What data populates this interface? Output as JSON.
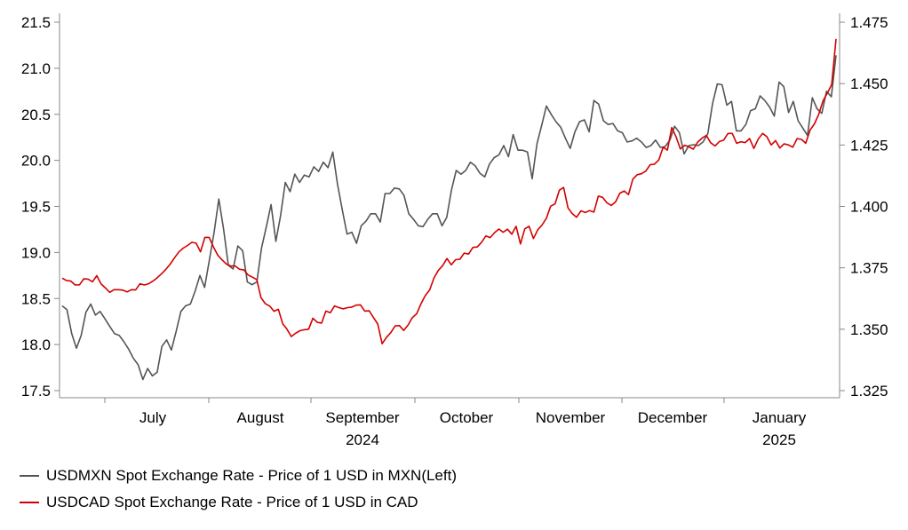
{
  "chart_data": {
    "type": "line",
    "left_axis": {
      "ylim": [
        17.5,
        21.5
      ],
      "ticks": [
        "17.5",
        "18.0",
        "18.5",
        "19.0",
        "19.5",
        "20.0",
        "20.5",
        "21.0",
        "21.5"
      ],
      "tick_values": [
        17.5,
        18.0,
        18.5,
        19.0,
        19.5,
        20.0,
        20.5,
        21.0,
        21.5
      ]
    },
    "right_axis": {
      "ylim": [
        1.325,
        1.475
      ],
      "ticks": [
        "1.325",
        "1.350",
        "1.375",
        "1.400",
        "1.425",
        "1.450",
        "1.475"
      ],
      "tick_values": [
        1.325,
        1.35,
        1.375,
        1.4,
        1.425,
        1.45,
        1.475
      ]
    },
    "x_labels": [
      {
        "label": "July",
        "year": ""
      },
      {
        "label": "August",
        "year": ""
      },
      {
        "label": "September",
        "year": "2024"
      },
      {
        "label": "October",
        "year": ""
      },
      {
        "label": "November",
        "year": ""
      },
      {
        "label": "December",
        "year": ""
      },
      {
        "label": "January",
        "year": "2025"
      }
    ],
    "series": [
      {
        "name": "USDMXN Spot Exchange Rate - Price of 1 USD in MXN(Left)",
        "axis": "left",
        "color": "#555555",
        "values": [
          18.42,
          18.38,
          18.12,
          17.96,
          18.1,
          18.35,
          18.44,
          18.32,
          18.36,
          18.28,
          18.2,
          18.12,
          18.1,
          18.03,
          17.95,
          17.85,
          17.78,
          17.62,
          17.74,
          17.66,
          17.7,
          17.98,
          18.05,
          17.94,
          18.14,
          18.36,
          18.42,
          18.44,
          18.58,
          18.75,
          18.62,
          18.92,
          19.22,
          19.58,
          19.25,
          18.86,
          18.82,
          19.07,
          19.02,
          18.68,
          18.65,
          18.68,
          19.05,
          19.28,
          19.52,
          19.12,
          19.4,
          19.76,
          19.66,
          19.85,
          19.76,
          19.84,
          19.82,
          19.93,
          19.88,
          19.98,
          19.92,
          20.09,
          19.74,
          19.46,
          19.2,
          19.22,
          19.1,
          19.29,
          19.34,
          19.42,
          19.42,
          19.33,
          19.64,
          19.64,
          19.7,
          19.69,
          19.62,
          19.42,
          19.36,
          19.29,
          19.28,
          19.36,
          19.42,
          19.42,
          19.29,
          19.38,
          19.68,
          19.89,
          19.85,
          19.89,
          19.98,
          19.94,
          19.86,
          19.82,
          19.96,
          20.03,
          20.06,
          20.16,
          20.04,
          20.28,
          20.11,
          20.11,
          20.09,
          19.8,
          20.18,
          20.38,
          20.59,
          20.5,
          20.42,
          20.36,
          20.24,
          20.13,
          20.31,
          20.42,
          20.44,
          20.31,
          20.65,
          20.61,
          20.43,
          20.39,
          20.4,
          20.32,
          20.3,
          20.2,
          20.21,
          20.24,
          20.2,
          20.14,
          20.16,
          20.22,
          20.14,
          20.15,
          20.22,
          20.37,
          20.3,
          20.07,
          20.16,
          20.17,
          20.16,
          20.2,
          20.29,
          20.62,
          20.83,
          20.82,
          20.6,
          20.64,
          20.32,
          20.32,
          20.39,
          20.54,
          20.56,
          20.7,
          20.65,
          20.58,
          20.48,
          20.85,
          20.8,
          20.52,
          20.64,
          20.43,
          20.35,
          20.27,
          20.68,
          20.56,
          20.51,
          20.75,
          20.69,
          21.14
        ]
      },
      {
        "name": "USDCAD Spot Exchange Rate - Price of 1 USD in CAD",
        "axis": "right",
        "color": "#d40000",
        "values": [
          1.3708,
          1.3698,
          1.3696,
          1.368,
          1.3681,
          1.3705,
          1.3704,
          1.3693,
          1.3718,
          1.3684,
          1.3668,
          1.365,
          1.3661,
          1.3661,
          1.3659,
          1.3652,
          1.3661,
          1.366,
          1.3685,
          1.368,
          1.3685,
          1.3696,
          1.371,
          1.3726,
          1.3744,
          1.3765,
          1.3791,
          1.3815,
          1.383,
          1.3841,
          1.3854,
          1.385,
          1.3815,
          1.3874,
          1.3874,
          1.3835,
          1.3801,
          1.3782,
          1.3765,
          1.3757,
          1.3758,
          1.3744,
          1.3742,
          1.3721,
          1.3712,
          1.3702,
          1.3628,
          1.3604,
          1.3594,
          1.3573,
          1.3581,
          1.3522,
          1.35,
          1.347,
          1.3484,
          1.3494,
          1.3498,
          1.35,
          1.3545,
          1.3528,
          1.3525,
          1.3574,
          1.3567,
          1.3595,
          1.3588,
          1.3583,
          1.3588,
          1.359,
          1.3598,
          1.3599,
          1.3574,
          1.3575,
          1.3548,
          1.3521,
          1.3441,
          1.3466,
          1.3486,
          1.3513,
          1.3515,
          1.3495,
          1.3517,
          1.3547,
          1.3563,
          1.3604,
          1.3637,
          1.366,
          1.3709,
          1.3739,
          1.3759,
          1.3788,
          1.3762,
          1.3783,
          1.3785,
          1.381,
          1.3806,
          1.3833,
          1.3835,
          1.3854,
          1.388,
          1.3873,
          1.3893,
          1.3908,
          1.3895,
          1.3907,
          1.3887,
          1.3919,
          1.3847,
          1.3909,
          1.3919,
          1.3869,
          1.3905,
          1.3924,
          1.3952,
          1.4001,
          1.401,
          1.4066,
          1.4077,
          1.3994,
          1.397,
          1.3956,
          1.3982,
          1.3975,
          1.3983,
          1.3977,
          1.4042,
          1.4037,
          1.4015,
          1.4004,
          1.4018,
          1.4054,
          1.4063,
          1.4048,
          1.4111,
          1.4129,
          1.4133,
          1.4144,
          1.417,
          1.4172,
          1.4189,
          1.4241,
          1.4229,
          1.4321,
          1.4283,
          1.4234,
          1.4249,
          1.4242,
          1.4233,
          1.4262,
          1.4278,
          1.4289,
          1.4259,
          1.4246,
          1.4264,
          1.427,
          1.4297,
          1.4297,
          1.4257,
          1.4263,
          1.426,
          1.4276,
          1.4236,
          1.4274,
          1.4297,
          1.4284,
          1.425,
          1.4268,
          1.4238,
          1.4255,
          1.425,
          1.4241,
          1.4276,
          1.4273,
          1.4257,
          1.4311,
          1.4336,
          1.4375,
          1.443,
          1.4462,
          1.4496,
          1.4682
        ]
      }
    ]
  }
}
